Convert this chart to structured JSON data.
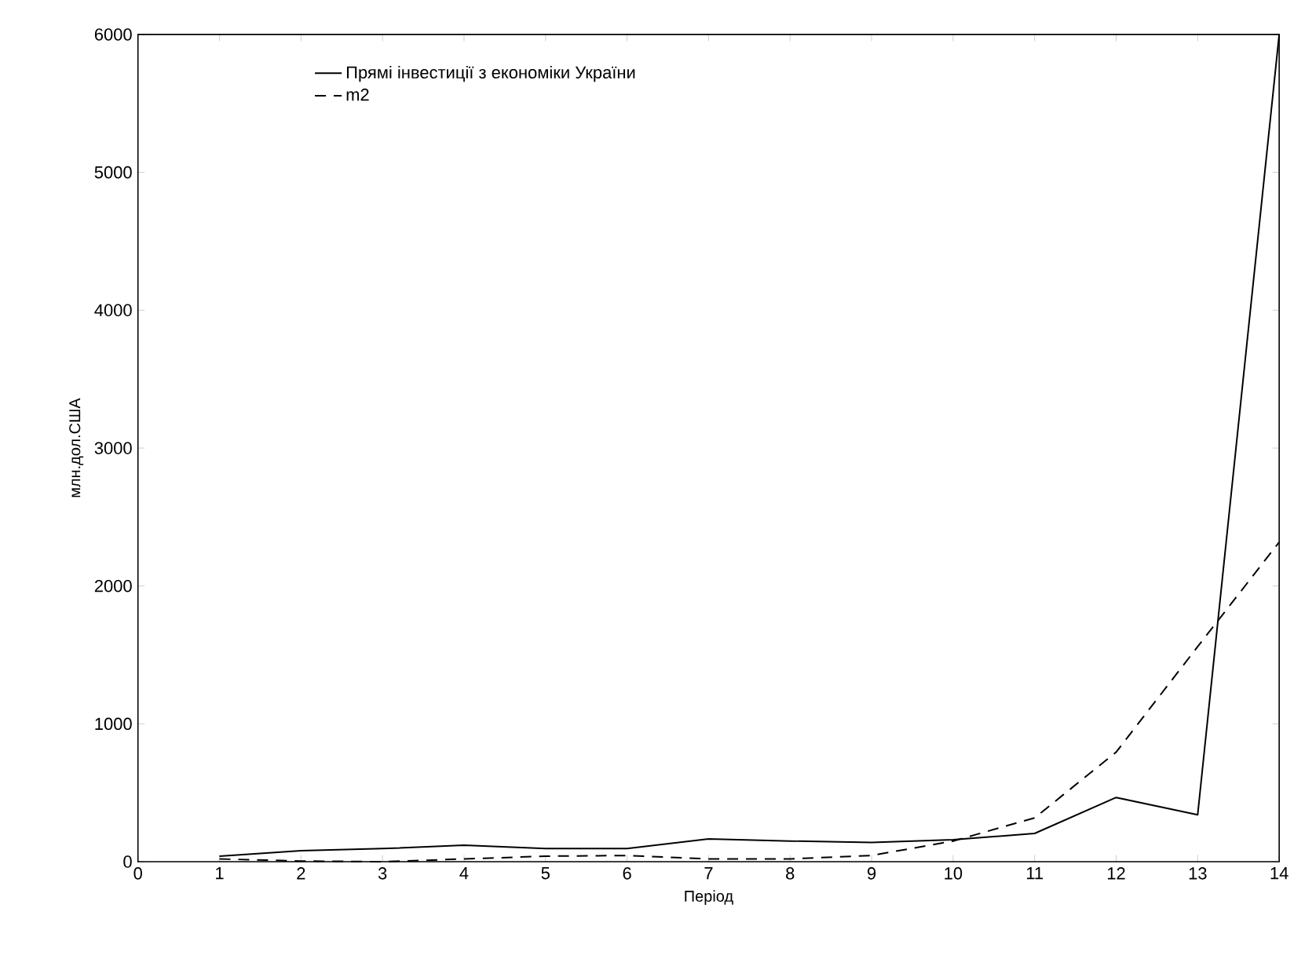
{
  "chart_data": {
    "type": "line",
    "xlabel": "Період",
    "ylabel": "млн.дол.США",
    "x": [
      1,
      2,
      3,
      4,
      5,
      6,
      7,
      8,
      9,
      10,
      11,
      12,
      13,
      14
    ],
    "series": [
      {
        "name": "Прямі інвестиції з економіки України",
        "color": "#000000",
        "line_style": "solid",
        "values": [
          40,
          80,
          95,
          120,
          95,
          95,
          165,
          150,
          140,
          160,
          205,
          466,
          340,
          6000
        ]
      },
      {
        "name": "m2",
        "color": "#000000",
        "line_style": "dashed",
        "values": [
          20,
          5,
          0,
          20,
          40,
          45,
          20,
          20,
          45,
          150,
          318,
          795,
          1560,
          2318
        ]
      }
    ],
    "xlim": [
      0,
      14
    ],
    "xticks": [
      0,
      1,
      2,
      3,
      4,
      5,
      6,
      7,
      8,
      9,
      10,
      11,
      12,
      13,
      14
    ],
    "ylim": [
      0,
      6000
    ],
    "yticks": [
      0,
      1000,
      2000,
      3000,
      4000,
      5000,
      6000
    ],
    "legend": "top left",
    "grid": false,
    "marker": "none"
  }
}
